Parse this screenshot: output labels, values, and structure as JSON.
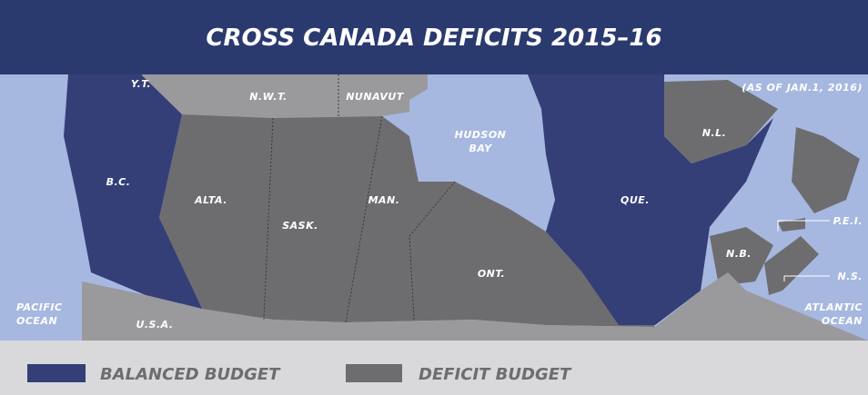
{
  "header": {
    "title": "CROSS CANADA DEFICITS 2015–16"
  },
  "note": "(AS OF JAN.1, 2016)",
  "regions": {
    "yt": "Y.T.",
    "nwt": "N.W.T.",
    "nunavut": "NUNAVUT",
    "bc": "B.C.",
    "alta": "ALTA.",
    "sask": "SASK.",
    "man": "MAN.",
    "ont": "ONT.",
    "que": "QUE.",
    "nl": "N.L.",
    "pei": "P.E.I.",
    "nb": "N.B.",
    "ns": "N.S.",
    "usa": "U.S.A."
  },
  "waters": {
    "hudson": [
      "HUDSON",
      "BAY"
    ],
    "pacific": [
      "PACIFIC",
      "OCEAN"
    ],
    "atlantic": [
      "ATLANTIC",
      "OCEAN"
    ]
  },
  "legend": [
    {
      "name": "BALANCED BUDGET",
      "color": "#343f78"
    },
    {
      "name": "DEFICIT BUDGET",
      "color": "#6d6d70"
    }
  ]
}
